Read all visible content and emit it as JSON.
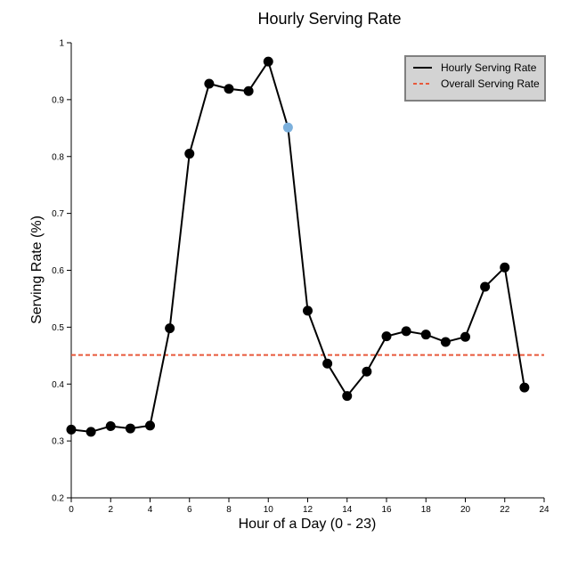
{
  "chart_data": {
    "type": "line",
    "title": "Hourly Serving Rate",
    "xlabel": "Hour of a Day (0 - 23)",
    "ylabel": "Serving Rate (%)",
    "xlim": [
      0,
      24
    ],
    "ylim": [
      0.2,
      1
    ],
    "x_ticks": [
      "0",
      "2",
      "4",
      "6",
      "8",
      "10",
      "12",
      "14",
      "16",
      "18",
      "20",
      "22",
      "24"
    ],
    "y_ticks": [
      "0.2",
      "0.3",
      "0.4",
      "0.5",
      "0.6",
      "0.7",
      "0.8",
      "0.9",
      "1"
    ],
    "grid": false,
    "legend_position": "top-right",
    "series": [
      {
        "name": "Hourly Serving Rate",
        "color": "#000000",
        "x": [
          0,
          1,
          2,
          3,
          4,
          5,
          6,
          7,
          8,
          9,
          10,
          11,
          12,
          13,
          14,
          15,
          16,
          17,
          18,
          19,
          20,
          21,
          22,
          23
        ],
        "values": [
          0.32,
          0.316,
          0.326,
          0.322,
          0.327,
          0.498,
          0.805,
          0.928,
          0.919,
          0.915,
          0.967,
          0.851,
          0.529,
          0.436,
          0.379,
          0.422,
          0.484,
          0.493,
          0.487,
          0.474,
          0.483,
          0.571,
          0.605,
          0.394
        ],
        "highlighted_point": {
          "x": 11,
          "color": "#7cb0dc"
        }
      },
      {
        "name": "Overall Serving Rate",
        "color": "#e8593b",
        "style": "dashed",
        "value": 0.451
      }
    ]
  }
}
